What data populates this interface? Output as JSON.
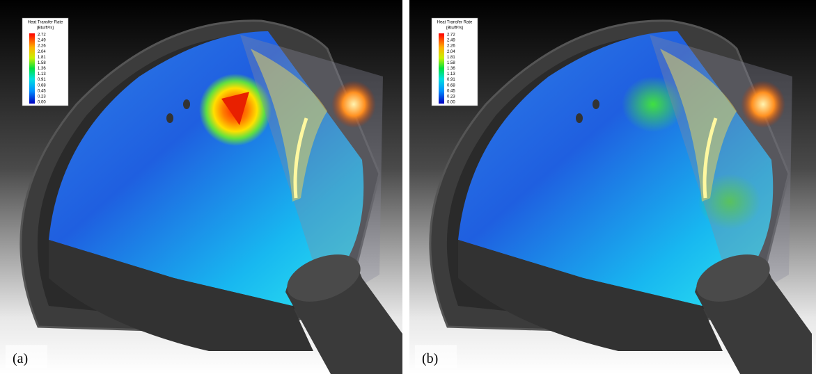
{
  "panels": [
    {
      "label": "(a)",
      "legend": {
        "title": "Heat Transfer Rate",
        "unit": "(Btu/ft²/s)",
        "ticks": [
          "2.72",
          "2.49",
          "2.26",
          "2.04",
          "1.81",
          "1.58",
          "1.36",
          "1.13",
          "0.91",
          "0.68",
          "0.45",
          "0.23",
          "0.00"
        ]
      }
    },
    {
      "label": "(b)",
      "legend": {
        "title": "Heat Transfer Rate",
        "unit": "(Btu/ft²/s)",
        "ticks": [
          "2.72",
          "2.49",
          "2.26",
          "2.04",
          "1.81",
          "1.58",
          "1.36",
          "1.13",
          "0.91",
          "0.68",
          "0.45",
          "0.23",
          "0.00"
        ]
      }
    }
  ]
}
